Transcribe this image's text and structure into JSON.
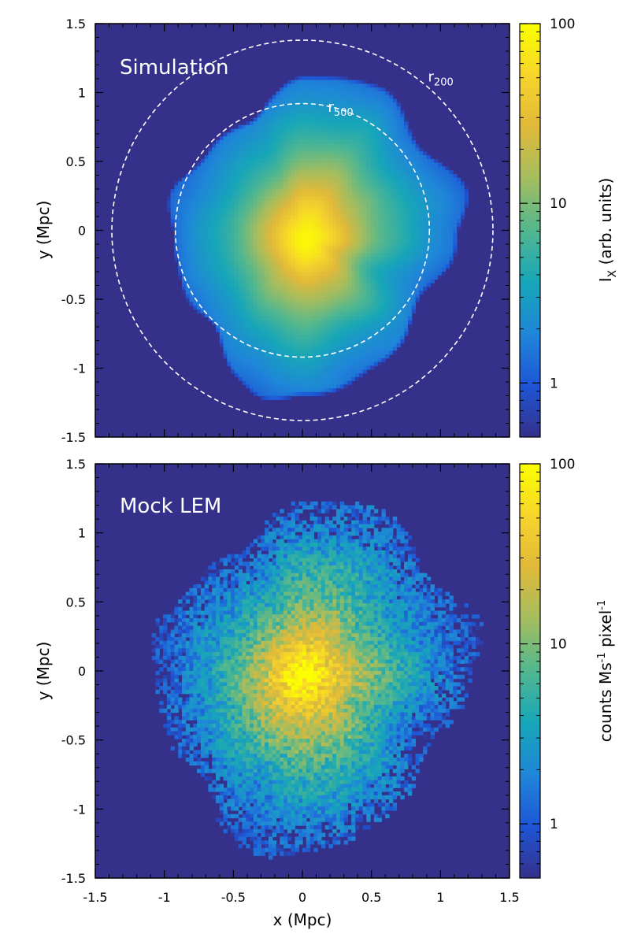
{
  "figure": {
    "background": "#ffffff",
    "colormap": [
      "#35308a",
      "#1e56d6",
      "#1f86d8",
      "#17a6b8",
      "#52b78f",
      "#a4bd5f",
      "#e0b93a",
      "#f6d52a",
      "#fbff00"
    ],
    "background_map_color": "#35308a"
  },
  "chart_data": [
    {
      "type": "heatmap",
      "panel_label": "Simulation",
      "xlabel": "",
      "ylabel": "y (Mpc)",
      "xlim": [
        -1.5,
        1.5
      ],
      "ylim": [
        -1.5,
        1.5
      ],
      "xticks": [],
      "yticks": [
        "-1.5",
        "-1",
        "-0.5",
        "0",
        "0.5",
        "1",
        "1.5"
      ],
      "colorbar": {
        "label_main": "I",
        "label_sub": "X",
        "label_rest": " (arb. units)",
        "scale": "log",
        "range": [
          0.5,
          100
        ],
        "ticks": [
          "1",
          "10",
          "100"
        ]
      },
      "image_model": {
        "peak_intensity": 100,
        "center": [
          0.02,
          -0.05
        ],
        "core_radius_mpc": 0.22,
        "outer_extent_mpc": 1.1,
        "noise": "smooth"
      },
      "annotations": [
        {
          "name": "r200-circle",
          "label": "r",
          "label_sub": "200",
          "radius_mpc": 1.38,
          "center": [
            0,
            0
          ],
          "style": "dashed",
          "color": "#ffffff"
        },
        {
          "name": "r500-circle",
          "label": "r",
          "label_sub": "500",
          "radius_mpc": 0.92,
          "center": [
            0,
            0
          ],
          "style": "dashed",
          "color": "#ffffff"
        }
      ]
    },
    {
      "type": "heatmap",
      "panel_label": "Mock LEM",
      "xlabel": "x (Mpc)",
      "ylabel": "y (Mpc)",
      "xlim": [
        -1.5,
        1.5
      ],
      "ylim": [
        -1.5,
        1.5
      ],
      "xticks": [
        "-1.5",
        "-1",
        "-0.5",
        "0",
        "0.5",
        "1",
        "1.5"
      ],
      "yticks": [
        "-1.5",
        "-1",
        "-0.5",
        "0",
        "0.5",
        "1",
        "1.5"
      ],
      "colorbar": {
        "label_main": "counts Ms",
        "label_sup1": "-1",
        "label_mid": " pixel",
        "label_sup2": "-1",
        "scale": "log",
        "range": [
          0.5,
          100
        ],
        "ticks": [
          "1",
          "10",
          "100"
        ]
      },
      "image_model": {
        "peak_intensity": 100,
        "center": [
          0.0,
          -0.05
        ],
        "core_radius_mpc": 0.22,
        "outer_extent_mpc": 1.25,
        "noise": "pixelated-poisson"
      },
      "annotations": []
    }
  ]
}
